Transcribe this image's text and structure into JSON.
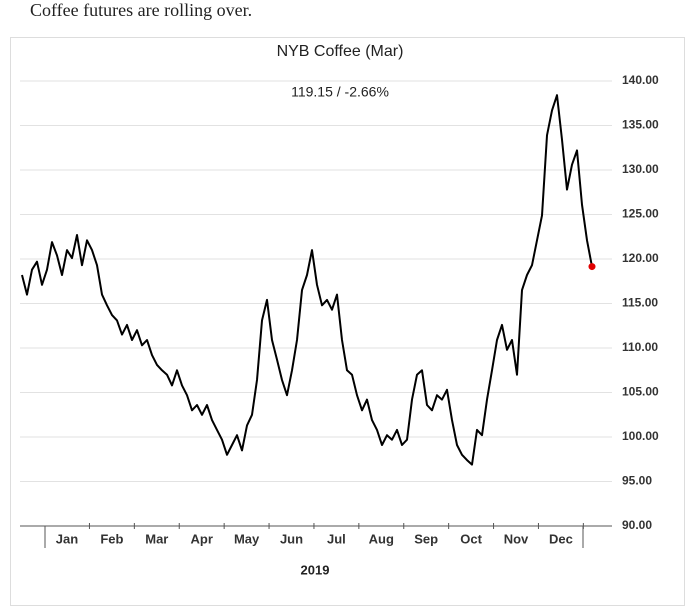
{
  "caption": "Coffee futures are rolling over.",
  "chart_data": {
    "type": "line",
    "title": "NYB Coffee (Mar)",
    "subtitle": "119.15  /  -2.66%",
    "x_label": "2019",
    "months": [
      "Jan",
      "Feb",
      "Mar",
      "Apr",
      "May",
      "Jun",
      "Jul",
      "Aug",
      "Sep",
      "Oct",
      "Nov",
      "Dec"
    ],
    "color": "#000000",
    "last_point_color": "#e00000",
    "grid": true,
    "ylim": [
      90,
      140
    ],
    "yticks": [
      {
        "value": 90,
        "label": "90.00"
      },
      {
        "value": 95,
        "label": "95.00"
      },
      {
        "value": 100,
        "label": "100.00"
      },
      {
        "value": 105,
        "label": "105.00"
      },
      {
        "value": 110,
        "label": "110.00"
      },
      {
        "value": 115,
        "label": "115.00"
      },
      {
        "value": 120,
        "label": "120.00"
      },
      {
        "value": 125,
        "label": "125.00"
      },
      {
        "value": 130,
        "label": "130.00"
      },
      {
        "value": 135,
        "label": "135.00"
      },
      {
        "value": 140,
        "label": "140.00"
      }
    ],
    "values": [
      118.2,
      116.0,
      118.8,
      119.7,
      117.1,
      118.8,
      121.9,
      120.4,
      118.2,
      121.0,
      120.1,
      122.7,
      119.3,
      122.1,
      121.0,
      119.3,
      116.0,
      114.8,
      113.7,
      113.1,
      111.5,
      112.6,
      110.9,
      112.0,
      110.3,
      110.9,
      109.2,
      108.1,
      107.5,
      107.0,
      105.8,
      107.5,
      105.8,
      104.7,
      103.0,
      103.6,
      102.5,
      103.6,
      101.9,
      100.8,
      99.7,
      98.0,
      99.1,
      100.2,
      98.5,
      101.3,
      102.5,
      106.4,
      113.1,
      115.4,
      110.9,
      108.7,
      106.4,
      104.7,
      107.5,
      110.9,
      116.5,
      118.2,
      121.0,
      117.1,
      114.8,
      115.4,
      114.3,
      116.0,
      110.9,
      107.5,
      107.0,
      104.7,
      103.0,
      104.2,
      101.9,
      100.8,
      99.1,
      100.2,
      99.7,
      100.8,
      99.1,
      99.7,
      104.2,
      107.0,
      107.5,
      103.6,
      103.0,
      104.7,
      104.2,
      105.3,
      101.9,
      99.1,
      98.0,
      97.4,
      96.9,
      100.8,
      100.2,
      104.2,
      107.5,
      110.9,
      112.6,
      109.8,
      110.9,
      107.0,
      116.5,
      118.2,
      119.3,
      122.1,
      124.9,
      133.9,
      136.7,
      138.4,
      133.4,
      127.8,
      130.6,
      132.2,
      126.1,
      122.1,
      119.15
    ]
  }
}
